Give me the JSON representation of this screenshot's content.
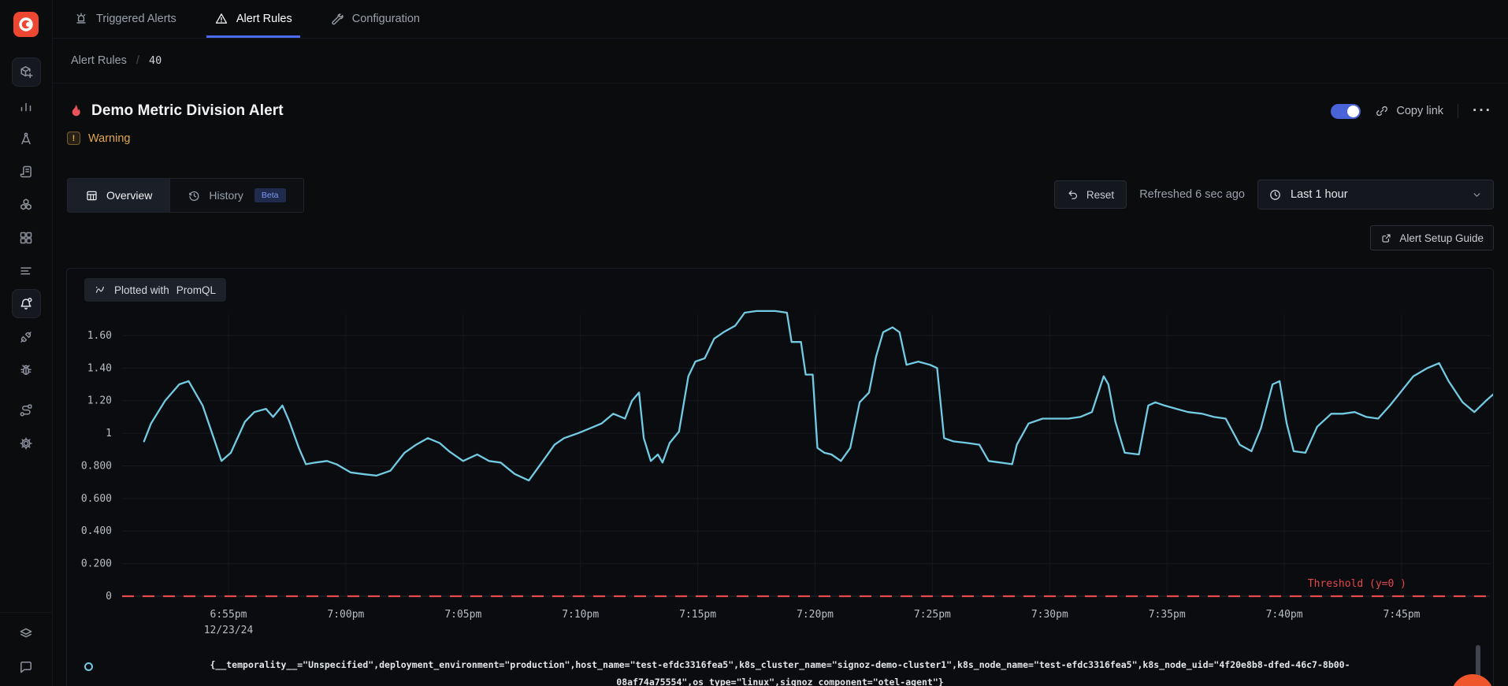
{
  "nav": {
    "tabs": [
      {
        "label": "Triggered Alerts",
        "icon": "siren-icon",
        "active": false
      },
      {
        "label": "Alert Rules",
        "icon": "alert-triangle-icon",
        "active": true
      },
      {
        "label": "Configuration",
        "icon": "tools-icon",
        "active": false
      }
    ]
  },
  "breadcrumb": {
    "section": "Alert Rules",
    "separator": "/",
    "id": "40"
  },
  "alert": {
    "title": "Demo Metric Division Alert",
    "severity": "Warning",
    "severity_mark": "!",
    "enabled": true,
    "copy_link_label": "Copy link",
    "more_label": "···"
  },
  "view_tabs": {
    "overview": "Overview",
    "history": "History",
    "history_beta": "Beta"
  },
  "controls": {
    "reset_label": "Reset",
    "refreshed_text": "Refreshed 6 sec ago",
    "time_range": "Last 1 hour",
    "setup_guide_label": "Alert Setup Guide"
  },
  "chart_badge": {
    "prefix": "Plotted with",
    "engine": "PromQL"
  },
  "legend": {
    "line1": "{__temporality__=\"Unspecified\",deployment_environment=\"production\",host_name=\"test-efdc3316fea5\",k8s_cluster_name=\"signoz-demo-cluster1\",k8s_node_name=\"test-efdc3316fea5\",k8s_node_uid=\"4f20e8b8-dfed-46c7-8b00-",
    "line2": "08af74a75554\",os_type=\"linux\",signoz_component=\"otel-agent\"}"
  },
  "sidebar": {
    "items": [
      "box-plus",
      "bar-chart",
      "drafting-compass",
      "scroll-text",
      "hexagons",
      "grid",
      "list",
      "bell-dot",
      "plug",
      "bug",
      "route",
      "gear"
    ],
    "bottom_items": [
      "layers",
      "chat"
    ]
  },
  "colors": {
    "accent_blue": "#4b6bf5",
    "toggle_on": "#4a63d9",
    "warning": "#e2a74b",
    "series": "#72cbe3",
    "threshold": "#e5484d",
    "logo_orange": "#ed4731",
    "fab_orange": "#f0562b",
    "beta_text": "#7e97f4"
  },
  "chart_data": {
    "type": "line",
    "title": "",
    "xlabel": "",
    "ylabel": "",
    "x_date_label": "12/23/24",
    "x_ticks": [
      "6:55pm",
      "7:00pm",
      "7:05pm",
      "7:10pm",
      "7:15pm",
      "7:20pm",
      "7:25pm",
      "7:30pm",
      "7:35pm",
      "7:40pm",
      "7:45pm"
    ],
    "y_ticks": [
      "0",
      "0.200",
      "0.400",
      "0.600",
      "0.800",
      "1",
      "1.20",
      "1.40",
      "1.60"
    ],
    "ylim": [
      0,
      1.75
    ],
    "grid": true,
    "legend_position": "bottom",
    "threshold": {
      "value": 0,
      "label": "Threshold (y=0 )",
      "color": "#e5484d"
    },
    "series": [
      {
        "name": "{__temporality__=\"Unspecified\",deployment_environment=\"production\",host_name=\"test-efdc3316fea5\",k8s_cluster_name=\"signoz-demo-cluster1\",k8s_node_name=\"test-efdc3316fea5\",k8s_node_uid=\"4f20e8b8-dfed-46c7-8b00-08af74a75554\",os_type=\"linux\",signoz_component=\"otel-agent\"}",
        "color": "#72cbe3",
        "x_minutes_from_6_55pm": [
          -3.6,
          -3.3,
          -2.7,
          -2.1,
          -1.7,
          -1.1,
          -0.7,
          -0.3,
          0.1,
          0.7,
          1.1,
          1.6,
          1.9,
          2.3,
          2.6,
          3.0,
          3.3,
          3.7,
          4.2,
          4.6,
          5.2,
          5.7,
          6.3,
          6.9,
          7.5,
          8.0,
          8.5,
          9.0,
          9.4,
          10.0,
          10.6,
          11.1,
          11.6,
          12.2,
          12.8,
          13.4,
          13.9,
          14.3,
          14.9,
          15.4,
          15.9,
          16.4,
          16.9,
          17.2,
          17.5,
          17.7,
          18.0,
          18.3,
          18.5,
          18.8,
          19.2,
          19.6,
          19.9,
          20.3,
          20.7,
          21.1,
          21.6,
          22.0,
          22.5,
          23.3,
          23.8,
          24.0,
          24.4,
          24.6,
          24.9,
          25.1,
          25.4,
          25.7,
          26.1,
          26.5,
          26.9,
          27.3,
          27.6,
          27.9,
          28.3,
          28.6,
          28.9,
          29.4,
          29.9,
          30.2,
          30.5,
          30.9,
          31.5,
          32.0,
          32.4,
          32.9,
          33.4,
          33.6,
          34.1,
          34.7,
          35.2,
          35.8,
          36.3,
          36.8,
          37.3,
          37.5,
          37.8,
          38.2,
          38.8,
          39.2,
          39.5,
          39.9,
          40.4,
          40.9,
          41.5,
          42.0,
          42.5,
          43.1,
          43.6,
          44.0,
          44.5,
          44.8,
          45.1,
          45.4,
          45.9,
          46.4,
          47.0,
          47.5,
          48.0,
          48.5,
          49.0,
          49.5,
          50.0,
          50.5,
          51.1,
          51.6,
          52.0,
          52.6,
          53.1,
          53.6,
          54.3
        ],
        "values": [
          0.95,
          1.06,
          1.2,
          1.3,
          1.32,
          1.17,
          1.0,
          0.83,
          0.88,
          1.07,
          1.13,
          1.15,
          1.1,
          1.17,
          1.07,
          0.91,
          0.81,
          0.82,
          0.83,
          0.81,
          0.76,
          0.75,
          0.74,
          0.77,
          0.88,
          0.93,
          0.97,
          0.94,
          0.89,
          0.83,
          0.87,
          0.83,
          0.82,
          0.75,
          0.71,
          0.83,
          0.93,
          0.97,
          1.0,
          1.03,
          1.06,
          1.12,
          1.09,
          1.2,
          1.25,
          0.97,
          0.83,
          0.87,
          0.82,
          0.94,
          1.01,
          1.35,
          1.44,
          1.46,
          1.58,
          1.62,
          1.66,
          1.74,
          1.75,
          1.75,
          1.74,
          1.56,
          1.56,
          1.36,
          1.36,
          0.91,
          0.88,
          0.87,
          0.83,
          0.91,
          1.19,
          1.25,
          1.47,
          1.62,
          1.65,
          1.62,
          1.42,
          1.44,
          1.42,
          1.4,
          0.97,
          0.95,
          0.94,
          0.93,
          0.83,
          0.82,
          0.81,
          0.93,
          1.06,
          1.09,
          1.09,
          1.09,
          1.1,
          1.13,
          1.35,
          1.3,
          1.07,
          0.88,
          0.87,
          1.17,
          1.19,
          1.17,
          1.15,
          1.13,
          1.12,
          1.1,
          1.09,
          0.93,
          0.89,
          1.03,
          1.3,
          1.32,
          1.06,
          0.89,
          0.88,
          1.04,
          1.12,
          1.12,
          1.13,
          1.1,
          1.09,
          1.17,
          1.26,
          1.35,
          1.4,
          1.43,
          1.32,
          1.19,
          1.13,
          1.2,
          1.29
        ]
      }
    ]
  }
}
